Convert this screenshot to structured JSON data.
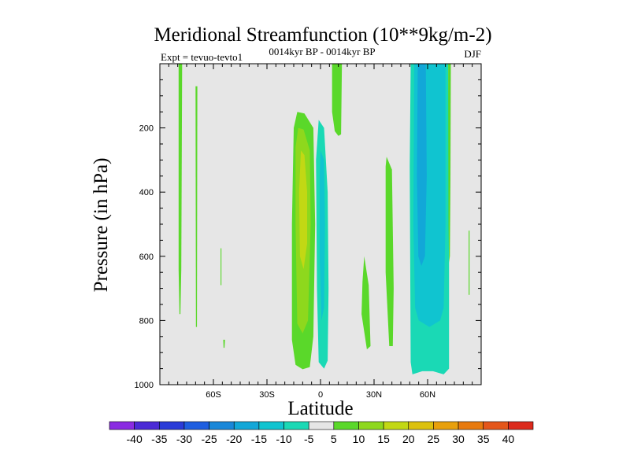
{
  "chart_data": {
    "type": "contour",
    "title": "Meridional Streamfunction (10**9kg/m-2)",
    "left_label": "Expt = tevuo-tevto1",
    "center_label": "0014kyr BP - 0014kyr BP",
    "right_label": "DJF",
    "xlabel": "Latitude",
    "ylabel": "Pressure (in hPa)",
    "xlim": [
      -90,
      90
    ],
    "ylim": [
      0,
      1000
    ],
    "y_reversed": true,
    "x_ticks": [
      {
        "value": -60,
        "label": "60S"
      },
      {
        "value": -30,
        "label": "30S"
      },
      {
        "value": 0,
        "label": "0"
      },
      {
        "value": 30,
        "label": "30N"
      },
      {
        "value": 60,
        "label": "60N"
      }
    ],
    "y_ticks": [
      200,
      400,
      600,
      800,
      1000
    ],
    "background_color": "#e6e6e6",
    "colorbar": {
      "levels": [
        -40,
        -35,
        -30,
        -25,
        -20,
        -15,
        -10,
        -5,
        5,
        10,
        15,
        20,
        25,
        30,
        35,
        40
      ],
      "colors": [
        "#8a2be2",
        "#4b2ad6",
        "#2a3bd8",
        "#1e5ee0",
        "#1987d9",
        "#12a7d8",
        "#10c4d0",
        "#1ad9b5",
        "#e6e6e6",
        "#5ad82a",
        "#8ed81d",
        "#c2d814",
        "#dcc10e",
        "#e8a00c",
        "#e87a0e",
        "#e4561a",
        "#dc2a1c"
      ]
    },
    "regions": [
      {
        "name": "pos-strip-far-south",
        "value": 7,
        "points": [
          [
            -79.5,
            0
          ],
          [
            -77.5,
            0
          ],
          [
            -78,
            640
          ],
          [
            -78.5,
            780
          ],
          [
            -79,
            780
          ],
          [
            -79.5,
            640
          ]
        ]
      },
      {
        "name": "pos-strip-60s",
        "value": 7,
        "points": [
          [
            -70,
            70
          ],
          [
            -69,
            70
          ],
          [
            -69.2,
            820
          ],
          [
            -69.8,
            820
          ]
        ]
      },
      {
        "name": "pos-small-55s",
        "value": 7,
        "points": [
          [
            -56,
            575
          ],
          [
            -55.5,
            575
          ],
          [
            -55.5,
            690
          ],
          [
            -56,
            690
          ]
        ]
      },
      {
        "name": "pos-dot-53s",
        "value": 7,
        "points": [
          [
            -54.5,
            860
          ],
          [
            -53.5,
            860
          ],
          [
            -53.8,
            885
          ],
          [
            -54.3,
            885
          ]
        ]
      },
      {
        "name": "pos-cell-outer",
        "value": 7,
        "points": [
          [
            -13,
            150
          ],
          [
            -9,
            155
          ],
          [
            -4,
            200
          ],
          [
            -3,
            500
          ],
          [
            -4,
            850
          ],
          [
            -6,
            945
          ],
          [
            -10,
            952
          ],
          [
            -14,
            938
          ],
          [
            -16,
            860
          ],
          [
            -16,
            500
          ],
          [
            -15,
            200
          ]
        ]
      },
      {
        "name": "pos-cell-mid",
        "value": 12,
        "points": [
          [
            -12.5,
            200
          ],
          [
            -9.5,
            205
          ],
          [
            -6,
            270
          ],
          [
            -5.5,
            500
          ],
          [
            -7,
            800
          ],
          [
            -10,
            840
          ],
          [
            -13,
            810
          ],
          [
            -14,
            500
          ],
          [
            -14,
            260
          ]
        ]
      },
      {
        "name": "pos-cell-core",
        "value": 17,
        "points": [
          [
            -11,
            270
          ],
          [
            -9,
            285
          ],
          [
            -7.5,
            400
          ],
          [
            -7.5,
            560
          ],
          [
            -9.5,
            640
          ],
          [
            -11.5,
            600
          ],
          [
            -12,
            400
          ]
        ]
      },
      {
        "name": "pos-strip-top-10n",
        "value": 7,
        "points": [
          [
            6.5,
            0
          ],
          [
            12,
            0
          ],
          [
            11.5,
            220
          ],
          [
            10,
            225
          ],
          [
            8,
            210
          ],
          [
            6.5,
            150
          ]
        ]
      },
      {
        "name": "neg-cell-outer",
        "value": -7,
        "points": [
          [
            -1,
            175
          ],
          [
            2,
            200
          ],
          [
            4,
            400
          ],
          [
            4.5,
            700
          ],
          [
            4,
            925
          ],
          [
            2,
            950
          ],
          [
            -1,
            930
          ],
          [
            -2,
            700
          ],
          [
            -2.5,
            300
          ]
        ]
      },
      {
        "name": "neg-cell-inner",
        "value": -12,
        "points": [
          [
            0,
            270
          ],
          [
            2,
            300
          ],
          [
            2.5,
            500
          ],
          [
            2,
            760
          ],
          [
            0.5,
            800
          ],
          [
            -0.5,
            600
          ],
          [
            -0.5,
            350
          ]
        ]
      },
      {
        "name": "pos-wedge-25n",
        "value": 7,
        "points": [
          [
            24.5,
            600
          ],
          [
            27,
            690
          ],
          [
            28,
            880
          ],
          [
            26,
            890
          ],
          [
            23,
            780
          ],
          [
            23.5,
            680
          ]
        ]
      },
      {
        "name": "pos-strip-37n",
        "value": 7,
        "points": [
          [
            37,
            290
          ],
          [
            40,
            330
          ],
          [
            41,
            700
          ],
          [
            40.5,
            880
          ],
          [
            38.5,
            880
          ],
          [
            36.5,
            650
          ],
          [
            36.5,
            320
          ]
        ]
      },
      {
        "name": "neg-band-outer",
        "value": -7,
        "points": [
          [
            50.5,
            0
          ],
          [
            71.5,
            0
          ],
          [
            72,
            320
          ],
          [
            72,
            950
          ],
          [
            69,
            968
          ],
          [
            63,
            958
          ],
          [
            57,
            958
          ],
          [
            51.5,
            968
          ],
          [
            50.5,
            930
          ],
          [
            50,
            320
          ]
        ]
      },
      {
        "name": "neg-band-mid",
        "value": -12,
        "points": [
          [
            52.5,
            0
          ],
          [
            70,
            0
          ],
          [
            70,
            500
          ],
          [
            69,
            760
          ],
          [
            67,
            800
          ],
          [
            61,
            820
          ],
          [
            55,
            800
          ],
          [
            53,
            760
          ],
          [
            52,
            500
          ]
        ]
      },
      {
        "name": "neg-band-core",
        "value": -17,
        "points": [
          [
            54.5,
            0
          ],
          [
            59,
            0
          ],
          [
            59.5,
            350
          ],
          [
            58.5,
            600
          ],
          [
            56.5,
            630
          ],
          [
            54.8,
            600
          ],
          [
            54,
            350
          ]
        ]
      },
      {
        "name": "pos-edge-72n",
        "value": 7,
        "points": [
          [
            71.5,
            0
          ],
          [
            73,
            0
          ],
          [
            72.8,
            360
          ],
          [
            72.5,
            600
          ],
          [
            72,
            620
          ],
          [
            71.7,
            500
          ]
        ]
      },
      {
        "name": "pos-strip-far-north",
        "value": 7,
        "points": [
          [
            83,
            520
          ],
          [
            83.5,
            520
          ],
          [
            83.5,
            720
          ],
          [
            83,
            720
          ]
        ]
      }
    ]
  }
}
